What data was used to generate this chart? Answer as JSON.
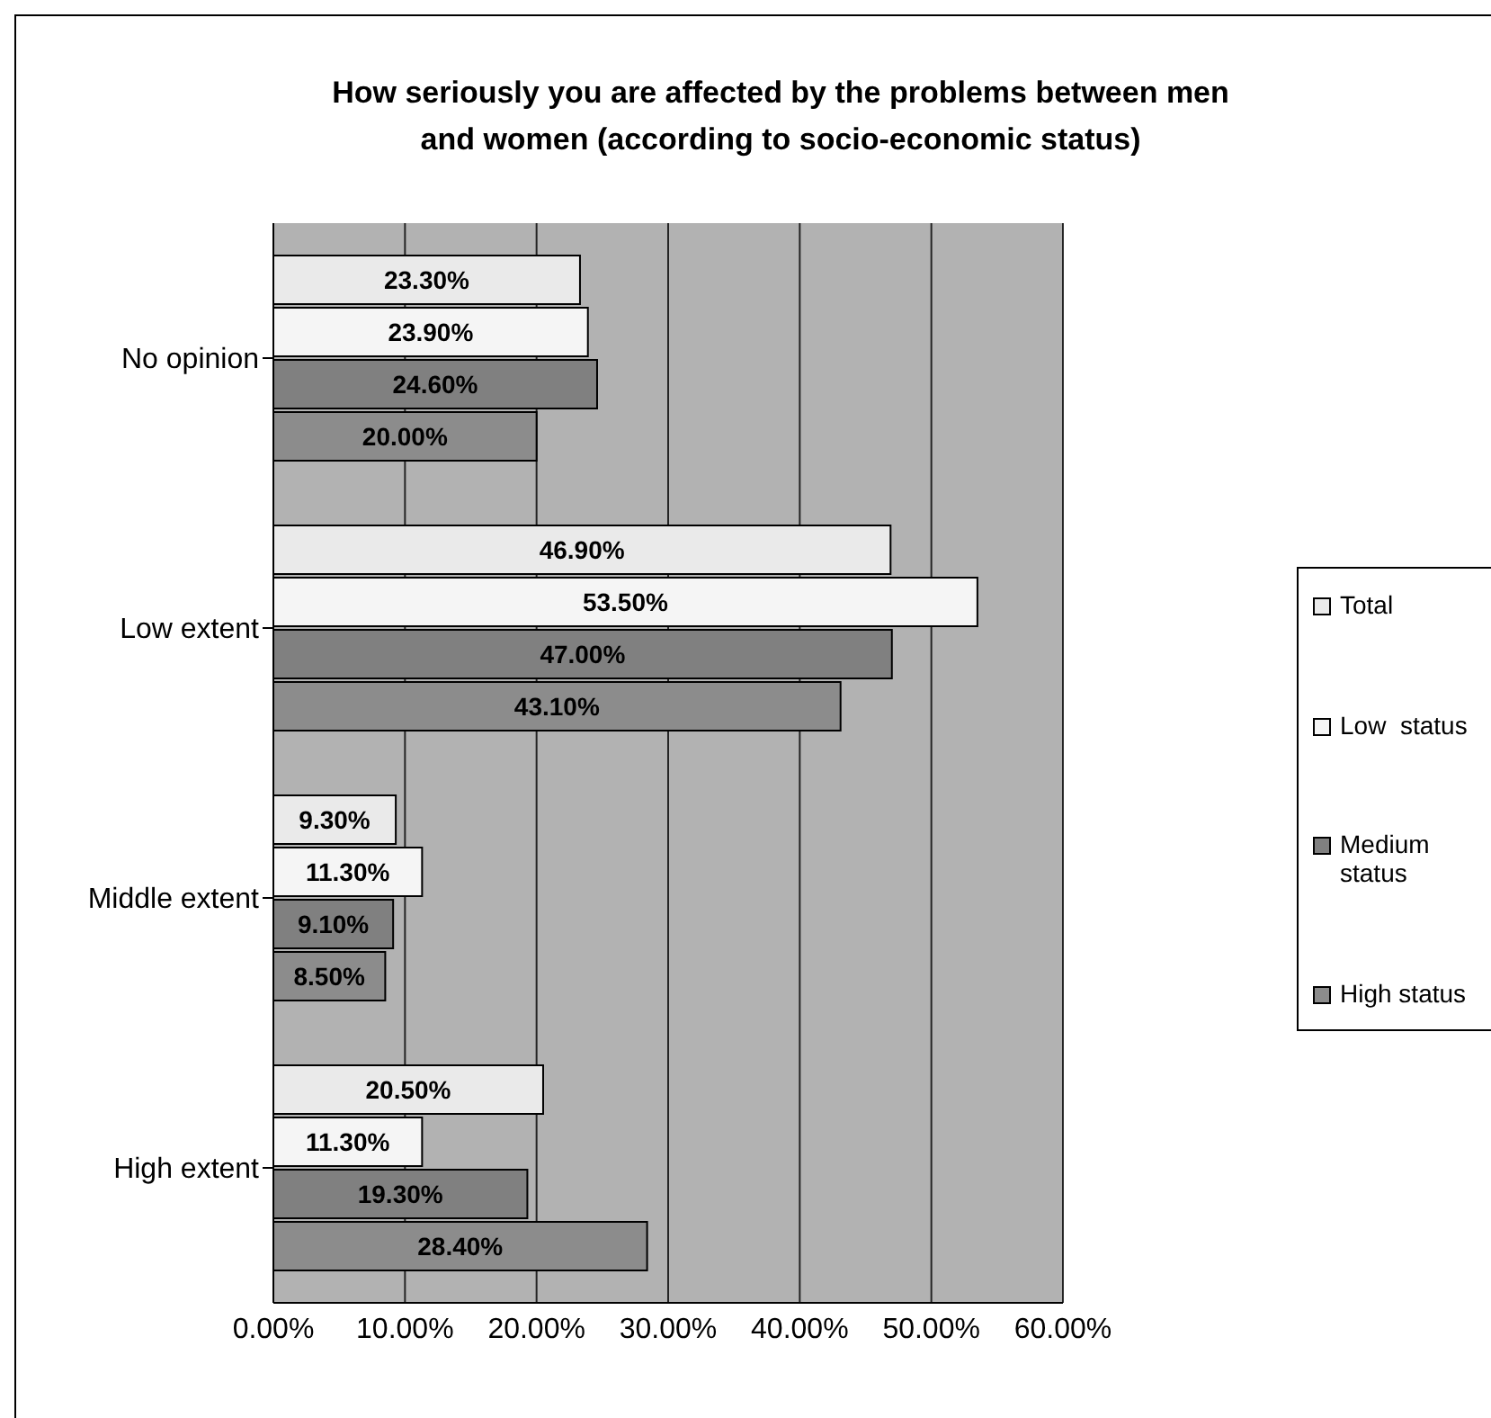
{
  "chart_data": {
    "type": "bar",
    "orientation": "horizontal",
    "title": "How seriously you are affected by the problems between men and women (according to socio-economic status)",
    "categories": [
      "No opinion",
      "Low extent",
      "Middle extent",
      "High extent"
    ],
    "series": [
      {
        "name": "Total",
        "color": "#eaeaea",
        "values": [
          23.3,
          46.9,
          9.3,
          20.5
        ],
        "value_labels": [
          "23.30%",
          "46.90%",
          "9.30%",
          "20.50%"
        ]
      },
      {
        "name": "Low  status",
        "color": "#f5f5f5",
        "values": [
          23.9,
          53.5,
          11.3,
          11.3
        ],
        "value_labels": [
          "23.90%",
          "53.50%",
          "11.30%",
          "11.30%"
        ]
      },
      {
        "name": "Medium status",
        "color": "#808080",
        "values": [
          24.6,
          47.0,
          9.1,
          19.3
        ],
        "value_labels": [
          "24.60%",
          "47.00%",
          "9.10%",
          "19.30%"
        ]
      },
      {
        "name": "High status",
        "color": "#8c8c8c",
        "values": [
          20.0,
          43.1,
          8.5,
          28.4
        ],
        "value_labels": [
          "20.00%",
          "43.10%",
          "8.50%",
          "28.40%"
        ]
      }
    ],
    "xlim": [
      0,
      60
    ],
    "xticks": [
      {
        "value": 0,
        "label": "0.00%"
      },
      {
        "value": 10,
        "label": "10.00%"
      },
      {
        "value": 20,
        "label": "20.00%"
      },
      {
        "value": 30,
        "label": "30.00%"
      },
      {
        "value": 40,
        "label": "40.00%"
      },
      {
        "value": 50,
        "label": "50.00%"
      },
      {
        "value": 60,
        "label": "60.00%"
      }
    ],
    "grid": "x",
    "legend": "right"
  }
}
